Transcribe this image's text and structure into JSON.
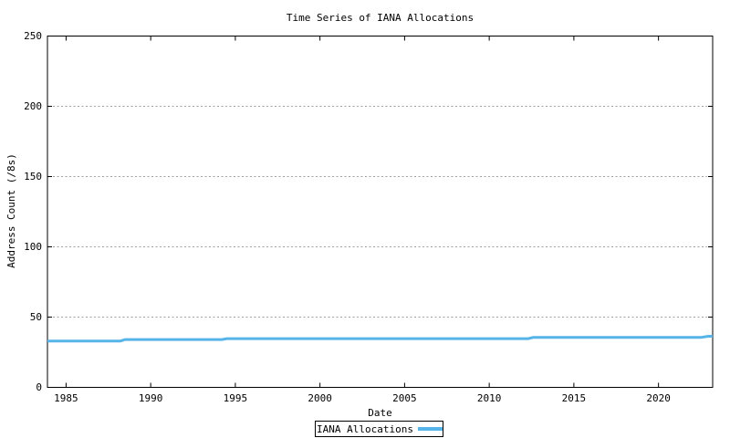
{
  "chart_data": {
    "type": "line",
    "title": "Time Series of IANA Allocations",
    "xlabel": "Date",
    "ylabel": "Address Count (/8s)",
    "xlim": [
      1983.9,
      2023.2
    ],
    "ylim": [
      0,
      250
    ],
    "xticks": [
      1985,
      1990,
      1995,
      2000,
      2005,
      2010,
      2015,
      2020
    ],
    "yticks": [
      0,
      50,
      100,
      150,
      200,
      250
    ],
    "grid": "horizontal-dotted",
    "grid_color": "#a0a0a0",
    "border_color": "#000000",
    "legend_position": "below-x-axis-center",
    "series": [
      {
        "name": "IANA Allocations",
        "color": "#56b4e9",
        "line_width": 3,
        "points": [
          [
            1983.9,
            33.0
          ],
          [
            1988.2,
            33.0
          ],
          [
            1988.5,
            34.0
          ],
          [
            1994.2,
            34.0
          ],
          [
            1994.5,
            34.7
          ],
          [
            2012.3,
            34.7
          ],
          [
            2012.6,
            35.5
          ],
          [
            2022.5,
            35.5
          ],
          [
            2022.9,
            36.3
          ],
          [
            2023.2,
            36.4
          ]
        ]
      }
    ]
  }
}
